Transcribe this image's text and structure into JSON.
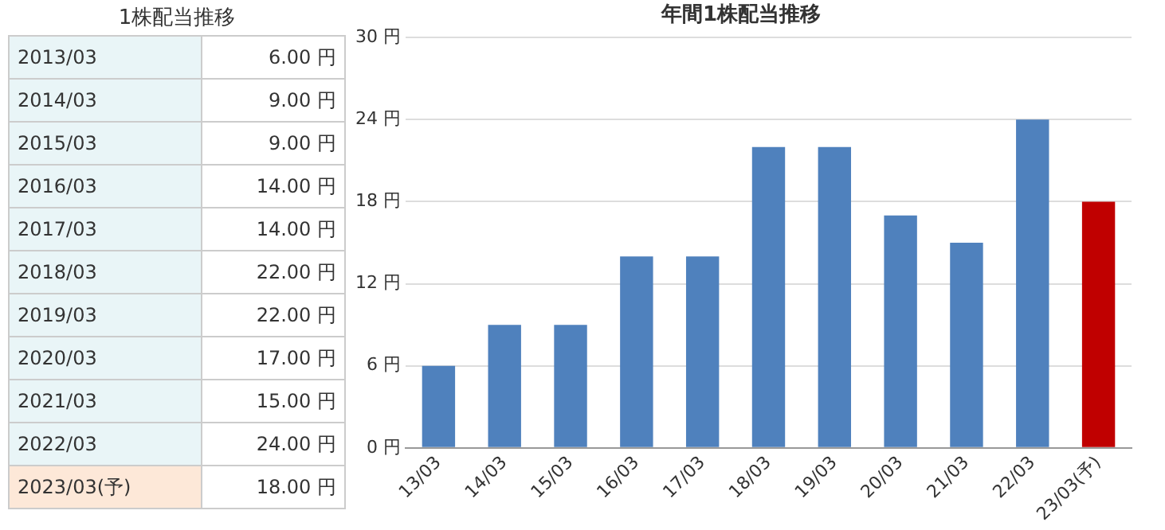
{
  "chart_data": [
    {
      "type": "other",
      "title": "1株配当推移",
      "categories": [
        "2013/03",
        "2014/03",
        "2015/03",
        "2016/03",
        "2017/03",
        "2018/03",
        "2019/03",
        "2020/03",
        "2021/03",
        "2022/03",
        "2023/03(予)"
      ],
      "value_labels": [
        "6.00 円",
        "9.00 円",
        "9.00 円",
        "14.00 円",
        "14.00 円",
        "22.00 円",
        "22.00 円",
        "17.00 円",
        "15.00 円",
        "24.00 円",
        "18.00 円"
      ]
    },
    {
      "type": "bar",
      "title": "年間1株配当推移",
      "categories": [
        "13/03",
        "14/03",
        "15/03",
        "16/03",
        "17/03",
        "18/03",
        "19/03",
        "20/03",
        "21/03",
        "22/03",
        "23/03(予)"
      ],
      "values": [
        6,
        9,
        9,
        14,
        14,
        22,
        22,
        17,
        15,
        24,
        18
      ],
      "colors": [
        "#4f81bd",
        "#4f81bd",
        "#4f81bd",
        "#4f81bd",
        "#4f81bd",
        "#4f81bd",
        "#4f81bd",
        "#4f81bd",
        "#4f81bd",
        "#4f81bd",
        "#c00000"
      ],
      "ylim": [
        0,
        30
      ],
      "yticks": [
        {
          "value": 0,
          "label": "0 円"
        },
        {
          "value": 6,
          "label": "6 円"
        },
        {
          "value": 12,
          "label": "12 円"
        },
        {
          "value": 18,
          "label": "18 円"
        },
        {
          "value": 24,
          "label": "24 円"
        },
        {
          "value": 30,
          "label": "30 円"
        }
      ],
      "grid": "y",
      "legend": false
    }
  ]
}
